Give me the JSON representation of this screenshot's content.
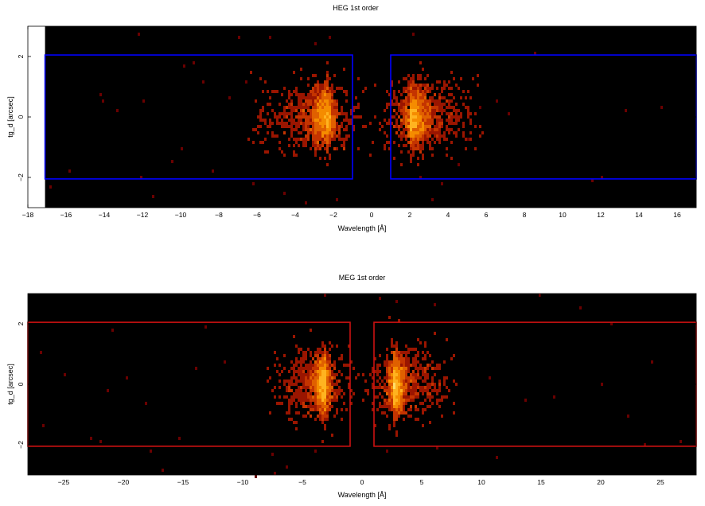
{
  "chart_data": [
    {
      "type": "heatmap",
      "title": "HEG 1st order",
      "xlabel": "Wavelength [Å]",
      "ylabel": "tg_d [arcsec]",
      "xlim": [
        -18,
        17
      ],
      "ylim": [
        -3,
        3
      ],
      "data_xlim": [
        -17.1,
        17
      ],
      "xticks": [
        -18,
        -16,
        -14,
        -12,
        -10,
        -8,
        -6,
        -4,
        -2,
        0,
        2,
        4,
        6,
        8,
        10,
        12,
        14,
        16
      ],
      "xtick_labels": [
        "−18",
        "−16",
        "−14",
        "−12",
        "−10",
        "−8",
        "−6",
        "−4",
        "−2",
        "0",
        "2",
        "4",
        "6",
        "8",
        "10",
        "12",
        "14",
        "16"
      ],
      "yticks": [
        -2,
        0,
        2
      ],
      "ytick_labels": [
        "−2",
        "0",
        "2"
      ],
      "background_color": "#000000",
      "region_color": "#0000ff",
      "regions": [
        {
          "x": [
            -17.1,
            -1.0
          ],
          "y": [
            -2.05,
            2.05
          ]
        },
        {
          "x": [
            1.0,
            17.0
          ],
          "y": [
            -2.05,
            2.05
          ]
        }
      ],
      "clusters": [
        {
          "center": -2.2,
          "spread": 2.0,
          "side": "neg",
          "peak": 1.0
        },
        {
          "center": 2.0,
          "spread": 1.8,
          "side": "pos",
          "peak": 1.0
        }
      ],
      "scattered_counts": [
        [
          -12.2,
          2.7
        ],
        [
          -15.8,
          -1.75
        ],
        [
          -16.8,
          -2.3
        ],
        [
          -14.1,
          0.5
        ],
        [
          -14.2,
          0.7
        ],
        [
          -13.3,
          0.2
        ],
        [
          -12.1,
          -2.0
        ],
        [
          -11.9,
          0.5
        ],
        [
          -11.4,
          -2.6
        ],
        [
          -10.5,
          -1.5
        ],
        [
          -9.3,
          1.8
        ],
        [
          -8.3,
          -1.8
        ],
        [
          -7.5,
          0.6
        ],
        [
          -7.0,
          2.6
        ],
        [
          -6.6,
          1.2
        ],
        [
          -6.2,
          -2.2
        ],
        [
          -5.3,
          2.6
        ],
        [
          -3.5,
          -2.8
        ],
        [
          -3.0,
          2.4
        ],
        [
          -2.2,
          2.6
        ],
        [
          -1.8,
          -2.7
        ],
        [
          -1.4,
          -0.9
        ],
        [
          2.2,
          2.75
        ],
        [
          2.6,
          -2.0
        ],
        [
          3.2,
          -2.7
        ],
        [
          3.7,
          -2.2
        ],
        [
          4.5,
          -1.6
        ],
        [
          5.0,
          -0.7
        ],
        [
          5.7,
          0.3
        ],
        [
          6.6,
          0.5
        ],
        [
          7.2,
          0.1
        ],
        [
          8.6,
          2.1
        ],
        [
          11.6,
          -2.1
        ],
        [
          12.0,
          -2.0
        ],
        [
          13.3,
          0.2
        ],
        [
          15.2,
          0.3
        ],
        [
          -10.0,
          -1.1
        ],
        [
          -9.8,
          1.7
        ],
        [
          -8.8,
          1.2
        ],
        [
          -4.6,
          -2.5
        ]
      ]
    },
    {
      "type": "heatmap",
      "title": "MEG 1st order",
      "xlabel": "Wavelength [Å]",
      "ylabel": "tg_d [arcsec]",
      "xlim": [
        -28,
        28
      ],
      "ylim": [
        -3,
        3
      ],
      "data_xlim": [
        -28,
        28
      ],
      "xticks": [
        -25,
        -20,
        -15,
        -10,
        -5,
        0,
        5,
        10,
        15,
        20,
        25
      ],
      "xtick_labels": [
        "−25",
        "−20",
        "−15",
        "−10",
        "−5",
        "0",
        "5",
        "10",
        "15",
        "20",
        "25"
      ],
      "yticks": [
        -2,
        0,
        2
      ],
      "ytick_labels": [
        "−2",
        "0",
        "2"
      ],
      "background_color": "#000000",
      "region_color": "#cc1111",
      "regions": [
        {
          "x": [
            -28,
            -1.0
          ],
          "y": [
            -2.05,
            2.05
          ]
        },
        {
          "x": [
            1.0,
            28
          ],
          "y": [
            -2.05,
            2.05
          ]
        }
      ],
      "clusters": [
        {
          "center": -3.0,
          "spread": 2.3,
          "side": "neg",
          "peak": 1.0
        },
        {
          "center": 2.6,
          "spread": 2.5,
          "side": "pos",
          "peak": 1.0
        }
      ],
      "scattered_counts": [
        [
          -26.8,
          1.1
        ],
        [
          -26.6,
          -1.4
        ],
        [
          -24.9,
          0.3
        ],
        [
          -22.7,
          -1.8
        ],
        [
          -22.0,
          -1.9
        ],
        [
          -21.0,
          1.8
        ],
        [
          -21.3,
          -0.2
        ],
        [
          -19.6,
          0.2
        ],
        [
          -17.7,
          -2.2
        ],
        [
          -16.7,
          -2.8
        ],
        [
          -15.3,
          -1.8
        ],
        [
          -14.0,
          0.5
        ],
        [
          -13.2,
          1.9
        ],
        [
          -11.6,
          0.7
        ],
        [
          -9.0,
          -3.0
        ],
        [
          -7.6,
          -2.3
        ],
        [
          -7.3,
          -2.9
        ],
        [
          -6.3,
          -2.7
        ],
        [
          -4.0,
          -2.2
        ],
        [
          -3.1,
          3.0
        ],
        [
          1.4,
          2.8
        ],
        [
          2.0,
          -2.2
        ],
        [
          2.9,
          2.7
        ],
        [
          6.0,
          2.6
        ],
        [
          6.3,
          -2.1
        ],
        [
          10.7,
          0.2
        ],
        [
          11.2,
          -2.4
        ],
        [
          14.8,
          2.9
        ],
        [
          16.0,
          -0.4
        ],
        [
          18.3,
          2.5
        ],
        [
          20.9,
          2.0
        ],
        [
          22.2,
          -1.1
        ],
        [
          23.6,
          -2.0
        ],
        [
          26.7,
          -1.9
        ],
        [
          20.1,
          0.0
        ],
        [
          13.7,
          -0.5
        ],
        [
          -18.1,
          -0.6
        ],
        [
          24.2,
          0.7
        ]
      ]
    }
  ]
}
